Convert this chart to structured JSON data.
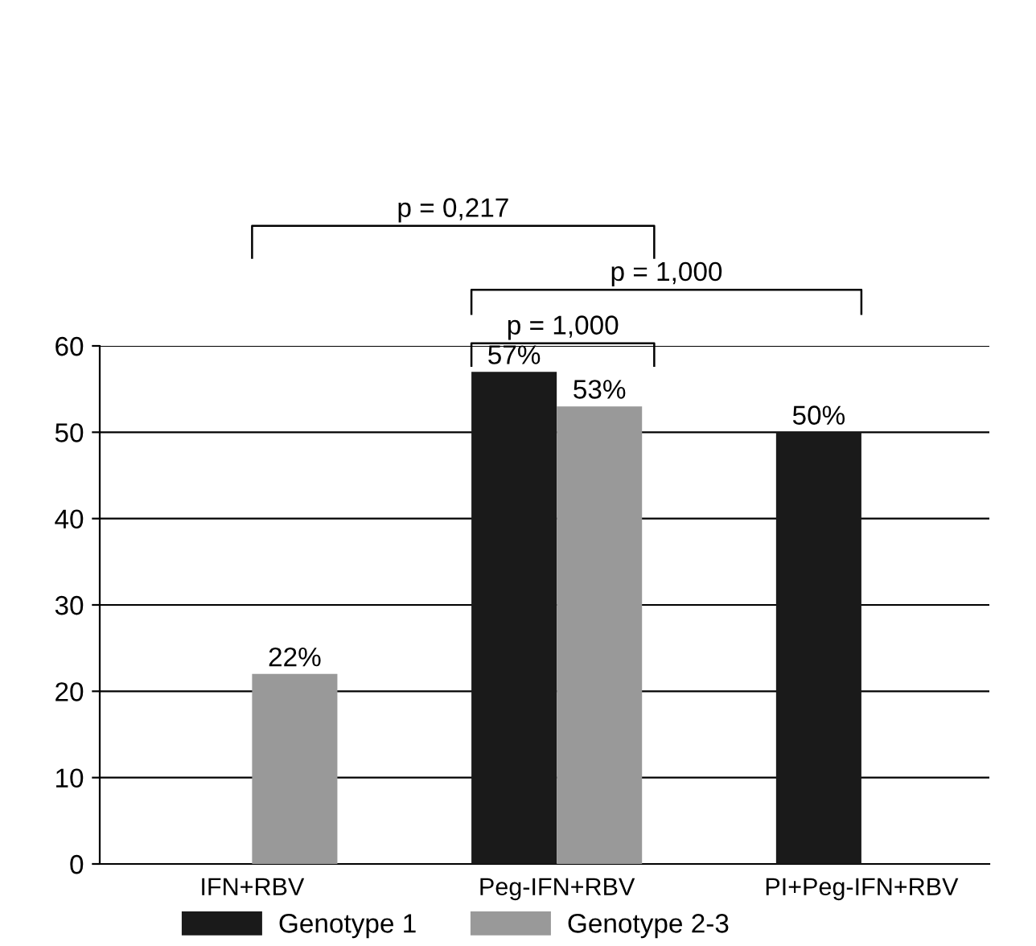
{
  "chart_data": {
    "type": "bar",
    "categories": [
      "IFN+RBV",
      "Peg-IFN+RBV",
      "PI+Peg-IFN+RBV"
    ],
    "series": [
      {
        "name": "Genotype 1",
        "color": "#1a1a1a",
        "values": [
          null,
          57,
          50
        ],
        "value_labels": [
          null,
          "57%",
          "50%"
        ]
      },
      {
        "name": "Genotype 2-3",
        "color": "#999999",
        "values": [
          22,
          53,
          null
        ],
        "value_labels": [
          "22%",
          "53%",
          null
        ]
      }
    ],
    "ylim": [
      0,
      60
    ],
    "yticks": [
      0,
      10,
      20,
      30,
      40,
      50,
      60
    ],
    "grid": "y",
    "legend": "bottom",
    "annotations": [
      "p = 0,217",
      "p = 1,000",
      "p = 1,000"
    ]
  }
}
